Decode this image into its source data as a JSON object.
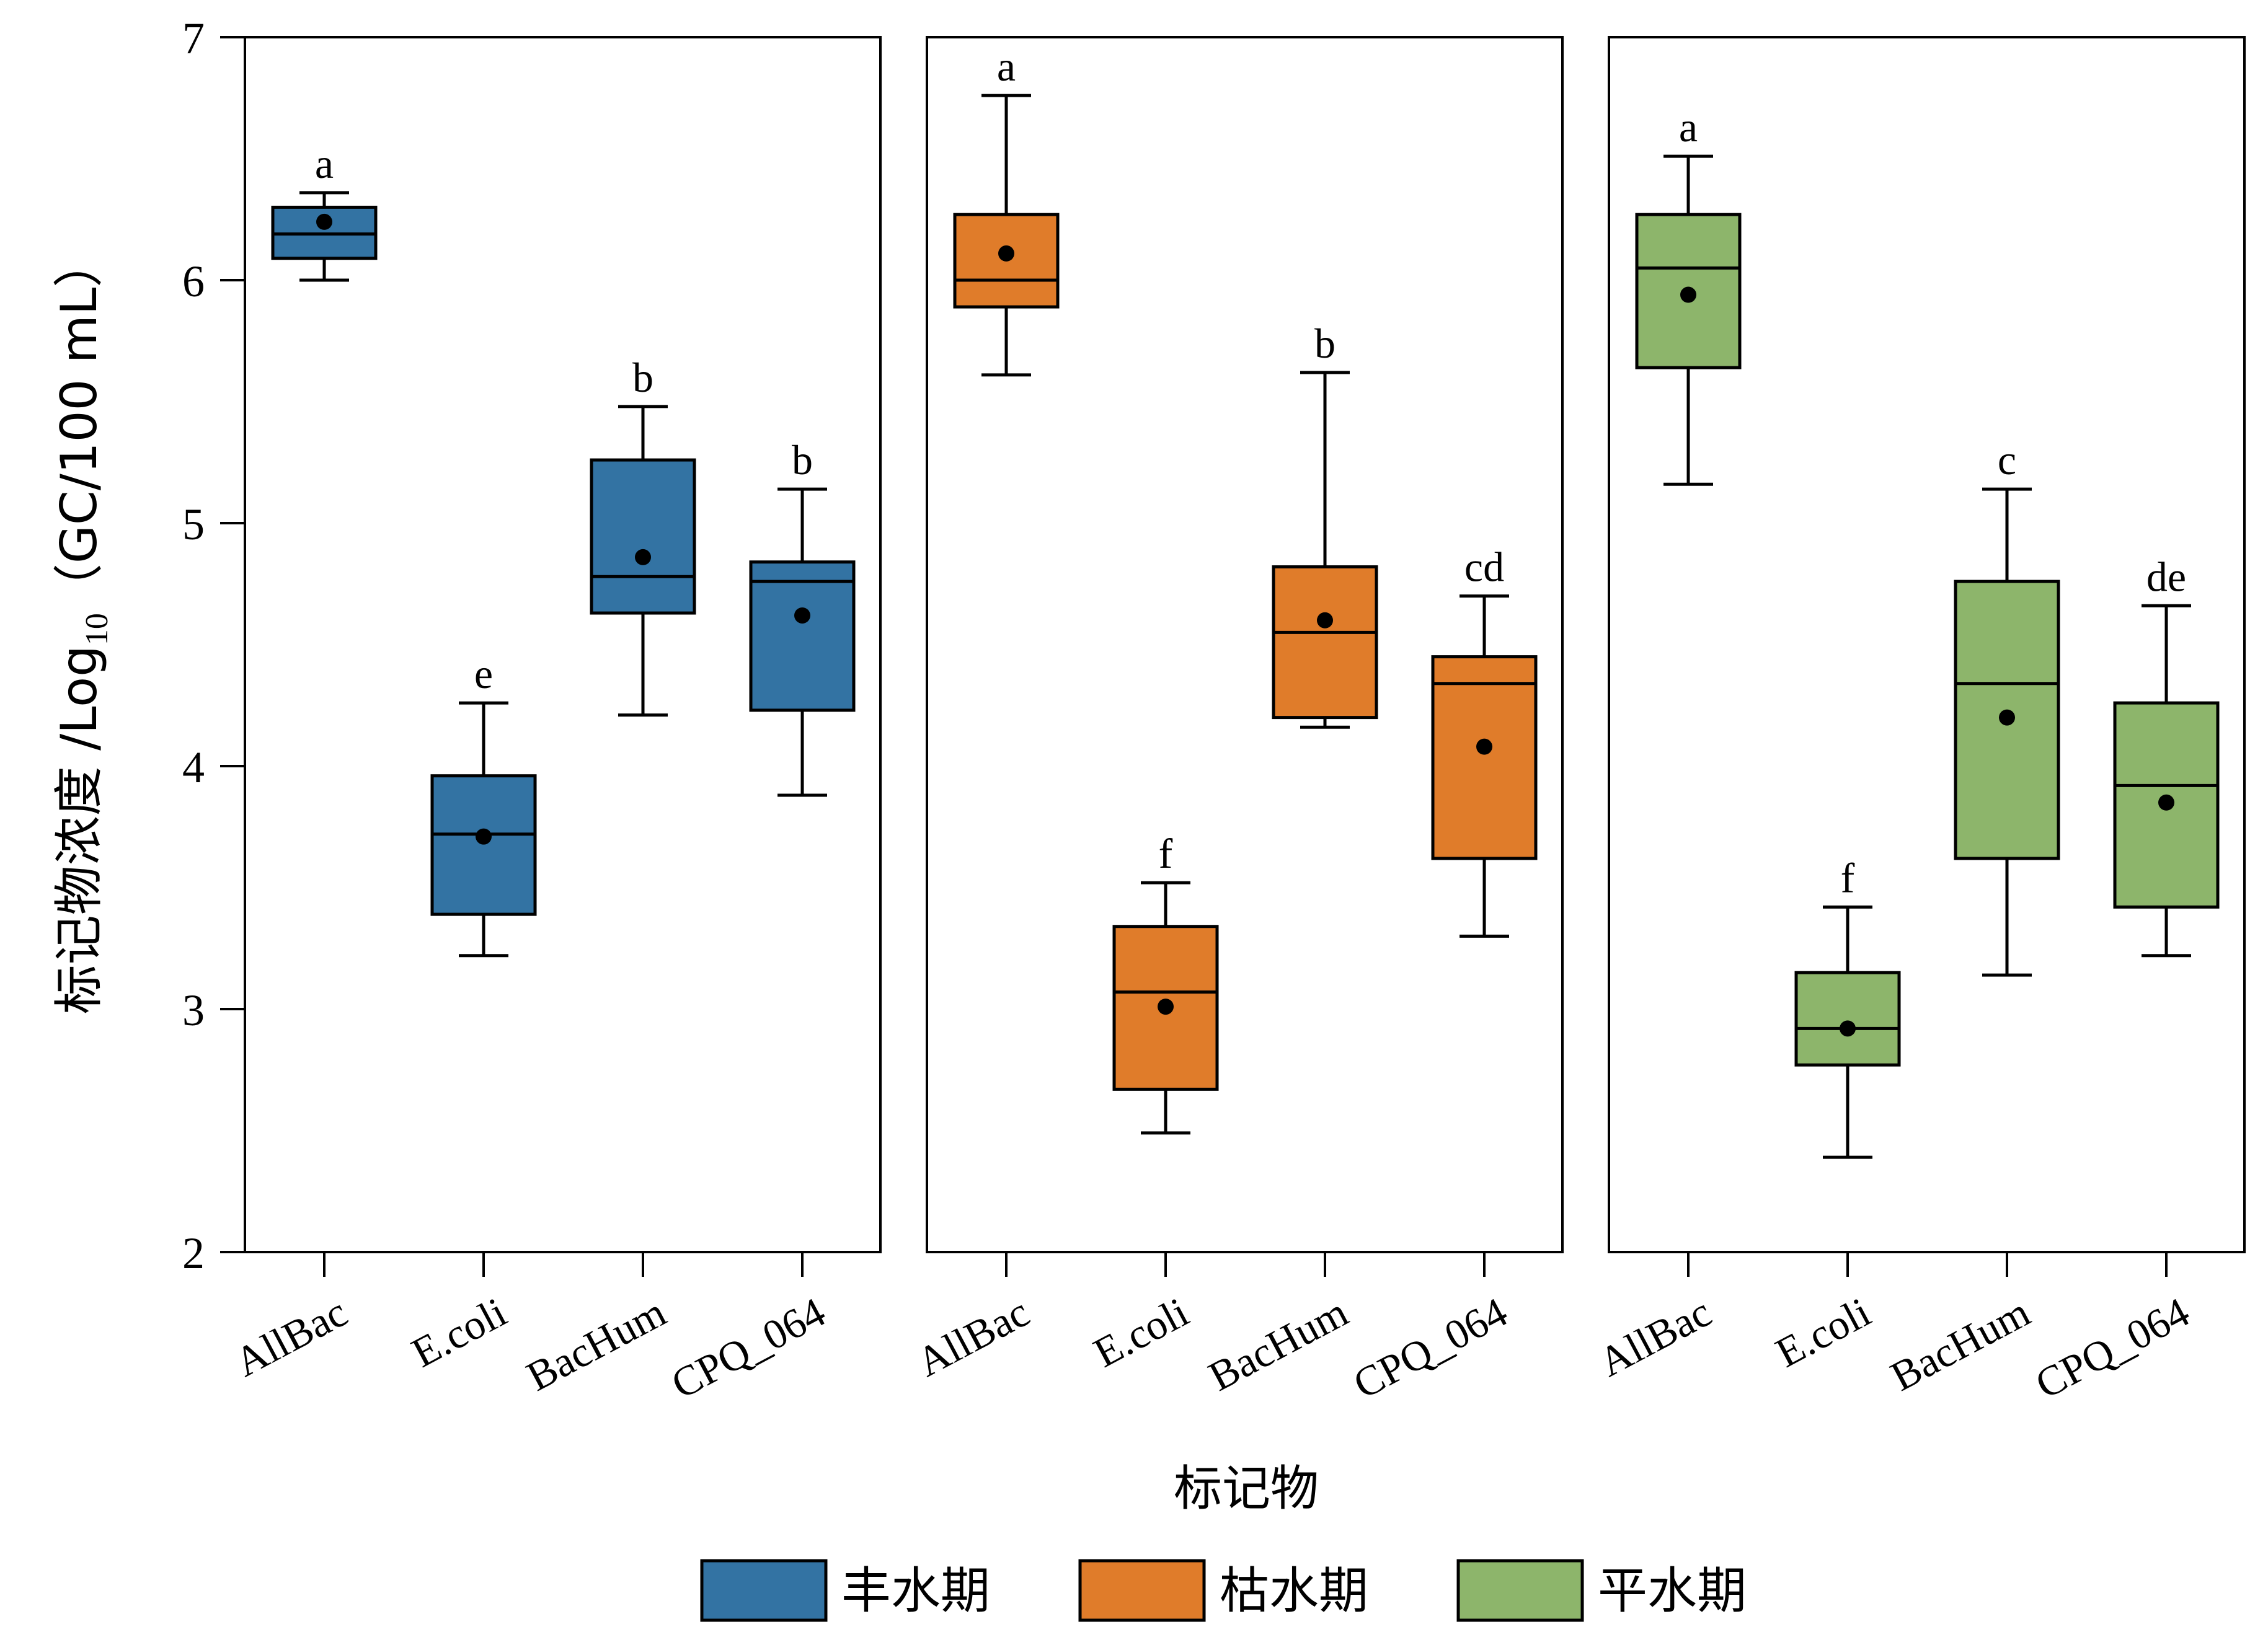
{
  "chart_data": {
    "type": "box",
    "ylabel": "标记物浓度 /Log10（GC/100 mL）",
    "ylabel_parts": {
      "prefix": "标记物浓度 /Log",
      "subscript": "10",
      "suffix": "（GC/100 mL）"
    },
    "xlabel": "标记物",
    "ylim": [
      2,
      7
    ],
    "yticks": [
      "2",
      "3",
      "4",
      "5",
      "6",
      "7"
    ],
    "categories": [
      "AllBac",
      "E.coli",
      "BacHum",
      "CPQ_064"
    ],
    "legend_position": "bottom-center",
    "panels": [
      {
        "name": "丰水期",
        "color": "#3373a3",
        "boxes": [
          {
            "category": "AllBac",
            "whisker_low": 6.0,
            "q1": 6.09,
            "median": 6.19,
            "q3": 6.3,
            "whisker_high": 6.36,
            "mean": 6.24,
            "label": "a"
          },
          {
            "category": "E.coli",
            "whisker_low": 3.22,
            "q1": 3.39,
            "median": 3.72,
            "q3": 3.96,
            "whisker_high": 4.26,
            "mean": 3.71,
            "label": "e"
          },
          {
            "category": "BacHum",
            "whisker_low": 4.21,
            "q1": 4.63,
            "median": 4.78,
            "q3": 5.26,
            "whisker_high": 5.48,
            "mean": 4.86,
            "label": "b"
          },
          {
            "category": "CPQ_064",
            "whisker_low": 3.88,
            "q1": 4.23,
            "median": 4.76,
            "q3": 4.84,
            "whisker_high": 5.14,
            "mean": 4.62,
            "label": "b"
          }
        ]
      },
      {
        "name": "枯水期",
        "color": "#e07c2a",
        "boxes": [
          {
            "category": "AllBac",
            "whisker_low": 5.61,
            "q1": 5.89,
            "median": 6.0,
            "q3": 6.27,
            "whisker_high": 6.76,
            "mean": 6.11,
            "label": "a"
          },
          {
            "category": "E.coli",
            "whisker_low": 2.49,
            "q1": 2.67,
            "median": 3.07,
            "q3": 3.34,
            "whisker_high": 3.52,
            "mean": 3.01,
            "label": "f"
          },
          {
            "category": "BacHum",
            "whisker_low": 4.16,
            "q1": 4.2,
            "median": 4.55,
            "q3": 4.82,
            "whisker_high": 5.62,
            "mean": 4.6,
            "label": "b"
          },
          {
            "category": "CPQ_064",
            "whisker_low": 3.3,
            "q1": 3.62,
            "median": 4.34,
            "q3": 4.45,
            "whisker_high": 4.7,
            "mean": 4.08,
            "label": "cd"
          }
        ]
      },
      {
        "name": "平水期",
        "color": "#8db56b",
        "boxes": [
          {
            "category": "AllBac",
            "whisker_low": 5.16,
            "q1": 5.64,
            "median": 6.05,
            "q3": 6.27,
            "whisker_high": 6.51,
            "mean": 5.94,
            "label": "a"
          },
          {
            "category": "E.coli",
            "whisker_low": 2.39,
            "q1": 2.77,
            "median": 2.92,
            "q3": 3.15,
            "whisker_high": 3.42,
            "mean": 2.92,
            "label": "f"
          },
          {
            "category": "BacHum",
            "whisker_low": 3.14,
            "q1": 3.62,
            "median": 4.34,
            "q3": 4.76,
            "whisker_high": 5.14,
            "mean": 4.2,
            "label": "c"
          },
          {
            "category": "CPQ_064",
            "whisker_low": 3.22,
            "q1": 3.42,
            "median": 3.92,
            "q3": 4.26,
            "whisker_high": 4.66,
            "mean": 3.85,
            "label": "de"
          }
        ]
      }
    ]
  }
}
